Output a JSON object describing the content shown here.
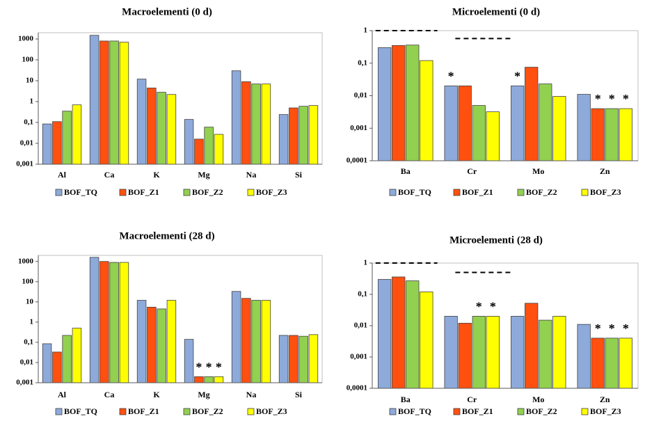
{
  "chart_data": [
    {
      "type": "bar",
      "title": "Macroelementi (0 d)",
      "log_y": true,
      "categories": [
        "Al",
        "Ca",
        "K",
        "Mg",
        "Na",
        "Si"
      ],
      "series": [
        {
          "name": "BOF_TQ",
          "color": "#8eaadb",
          "values": [
            0.085,
            1500,
            12,
            0.14,
            30,
            0.24
          ]
        },
        {
          "name": "BOF_Z1",
          "color": "#ff5010",
          "values": [
            0.11,
            800,
            4.5,
            0.016,
            9,
            0.5
          ]
        },
        {
          "name": "BOF_Z2",
          "color": "#92d050",
          "values": [
            0.35,
            800,
            2.8,
            0.06,
            7,
            0.6
          ]
        },
        {
          "name": "BOF_Z3",
          "color": "#ffff00",
          "values": [
            0.7,
            700,
            2.2,
            0.027,
            7,
            0.65
          ]
        }
      ],
      "ylim": [
        0.001,
        2000
      ],
      "yticks": [
        {
          "value": 0.001,
          "label": "0,001"
        },
        {
          "value": 0.01,
          "label": "0,01"
        },
        {
          "value": 0.1,
          "label": "0,1"
        },
        1,
        10,
        100,
        1000
      ]
    },
    {
      "type": "bar",
      "title": "Microelementi (0 d)",
      "log_y": true,
      "categories": [
        "Ba",
        "Cr",
        "Mo",
        "Zn"
      ],
      "series": [
        {
          "name": "BOF_TQ",
          "color": "#8eaadb",
          "values": [
            0.3,
            0.02,
            0.02,
            0.011
          ]
        },
        {
          "name": "BOF_Z1",
          "color": "#ff5010",
          "values": [
            0.35,
            0.02,
            0.075,
            0.004
          ]
        },
        {
          "name": "BOF_Z2",
          "color": "#92d050",
          "values": [
            0.36,
            0.005,
            0.023,
            0.004
          ]
        },
        {
          "name": "BOF_Z3",
          "color": "#ffff00",
          "values": [
            0.12,
            0.0032,
            0.0095,
            0.004
          ]
        }
      ],
      "ylim": [
        0.0001,
        1
      ],
      "yticks": [
        {
          "value": 0.0001,
          "label": "0,0001"
        },
        {
          "value": 0.001,
          "label": "0,001"
        },
        {
          "value": 0.01,
          "label": "0,01"
        },
        {
          "value": 0.1,
          "label": "0,1"
        },
        1
      ],
      "reference_lines": [
        {
          "category": 0,
          "value": 1
        },
        {
          "category": 1,
          "value": 0.57
        }
      ],
      "annotations": [
        {
          "text": "*",
          "series": 0,
          "category": 1
        },
        {
          "text": "*",
          "series": 0,
          "category": 2
        },
        {
          "text": "*",
          "series": 1,
          "category": 3
        },
        {
          "text": "*",
          "series": 2,
          "category": 3
        },
        {
          "text": "*",
          "series": 3,
          "category": 3
        }
      ]
    },
    {
      "type": "bar",
      "title": "Macroelementi (28 d)",
      "log_y": true,
      "categories": [
        "Al",
        "Ca",
        "K",
        "Mg",
        "Na",
        "Si"
      ],
      "series": [
        {
          "name": "BOF_TQ",
          "color": "#8eaadb",
          "values": [
            0.085,
            1600,
            12,
            0.14,
            33,
            0.22
          ]
        },
        {
          "name": "BOF_Z1",
          "color": "#ff5010",
          "values": [
            0.033,
            1000,
            5.5,
            0.002,
            15,
            0.22
          ]
        },
        {
          "name": "BOF_Z2",
          "color": "#92d050",
          "values": [
            0.22,
            900,
            4.5,
            0.002,
            12,
            0.2
          ]
        },
        {
          "name": "BOF_Z3",
          "color": "#ffff00",
          "values": [
            0.5,
            900,
            12,
            0.002,
            12,
            0.24
          ]
        }
      ],
      "ylim": [
        0.001,
        2000
      ],
      "yticks": [
        {
          "value": 0.001,
          "label": "0,001"
        },
        {
          "value": 0.01,
          "label": "0,01"
        },
        {
          "value": 0.1,
          "label": "0,1"
        },
        1,
        10,
        100,
        1000
      ],
      "annotations": [
        {
          "text": "*",
          "series": 1,
          "category": 3
        },
        {
          "text": "*",
          "series": 2,
          "category": 3
        },
        {
          "text": "*",
          "series": 3,
          "category": 3
        }
      ]
    },
    {
      "type": "bar",
      "title": "Microelementi (28 d)",
      "log_y": true,
      "categories": [
        "Ba",
        "Cr",
        "Mo",
        "Zn"
      ],
      "series": [
        {
          "name": "BOF_TQ",
          "color": "#8eaadb",
          "values": [
            0.3,
            0.02,
            0.02,
            0.011
          ]
        },
        {
          "name": "BOF_Z1",
          "color": "#ff5010",
          "values": [
            0.36,
            0.012,
            0.052,
            0.004
          ]
        },
        {
          "name": "BOF_Z2",
          "color": "#92d050",
          "values": [
            0.27,
            0.02,
            0.015,
            0.004
          ]
        },
        {
          "name": "BOF_Z3",
          "color": "#ffff00",
          "values": [
            0.12,
            0.02,
            0.02,
            0.004
          ]
        }
      ],
      "ylim": [
        0.0001,
        1
      ],
      "yticks": [
        {
          "value": 0.0001,
          "label": "0,0001"
        },
        {
          "value": 0.001,
          "label": "0,001"
        },
        {
          "value": 0.01,
          "label": "0,01"
        },
        {
          "value": 0.1,
          "label": "0,1"
        },
        1
      ],
      "reference_lines": [
        {
          "category": 0,
          "value": 1
        },
        {
          "category": 1,
          "value": 0.5
        }
      ],
      "annotations": [
        {
          "text": "*",
          "series": 2,
          "category": 1
        },
        {
          "text": "*",
          "series": 3,
          "category": 1
        },
        {
          "text": "*",
          "series": 1,
          "category": 3
        },
        {
          "text": "*",
          "series": 2,
          "category": 3
        },
        {
          "text": "*",
          "series": 3,
          "category": 3
        }
      ]
    }
  ]
}
